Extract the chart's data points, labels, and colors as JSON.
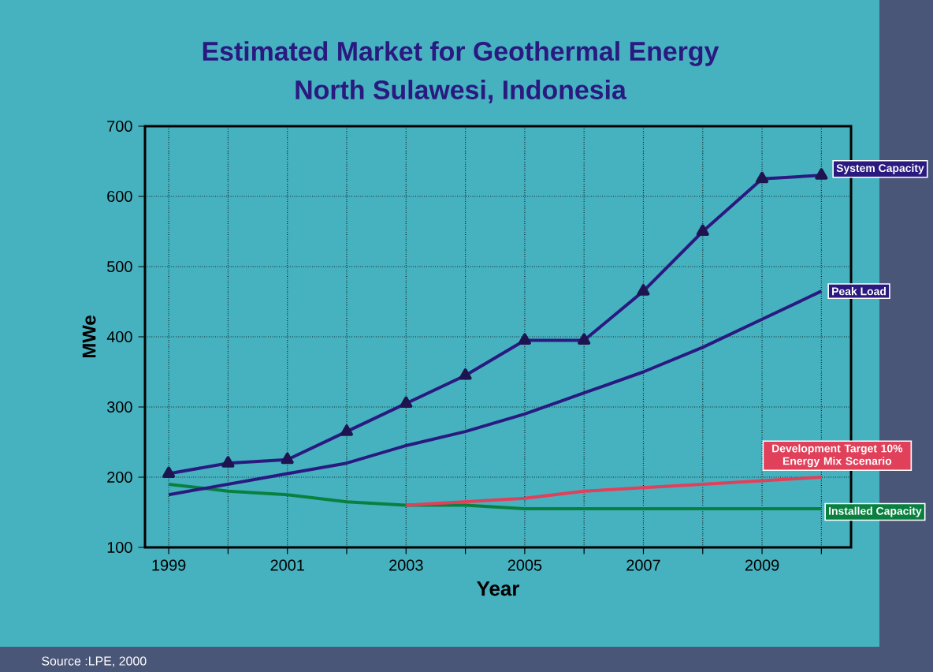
{
  "chart_data": {
    "type": "line",
    "title": "Estimated Market for Geothermal Energy",
    "subtitle": "North Sulawesi, Indonesia",
    "xlabel": "Year",
    "ylabel": "MWe",
    "annotations": [
      "Source :LPE, 2000"
    ],
    "xlim": [
      1998.6,
      2010.5
    ],
    "xticks": [
      1999,
      {
        "value": 2000,
        "label": null
      },
      2001,
      {
        "value": 2002,
        "label": null
      },
      2003,
      {
        "value": 2004,
        "label": null
      },
      2005,
      {
        "value": 2006,
        "label": null
      },
      2007,
      {
        "value": 2008,
        "label": null
      },
      2009,
      {
        "value": 2010,
        "label": null
      }
    ],
    "ylim": [
      100,
      700
    ],
    "yticks": [
      100,
      200,
      300,
      400,
      500,
      600,
      700
    ],
    "grid": true,
    "series": [
      {
        "name": "System Capacity",
        "color": "#2a1a80",
        "marker": "triangle",
        "x": [
          1999,
          2000,
          2001,
          2002,
          2003,
          2004,
          2005,
          2006,
          2007,
          2008,
          2009,
          2010
        ],
        "values": [
          205,
          220,
          225,
          265,
          305,
          345,
          395,
          395,
          465,
          550,
          625,
          630
        ]
      },
      {
        "name": "Peak Load",
        "color": "#2a1a80",
        "marker": "none",
        "x": [
          1999,
          2000,
          2001,
          2002,
          2003,
          2004,
          2005,
          2006,
          2007,
          2008,
          2009,
          2010
        ],
        "values": [
          175,
          190,
          205,
          220,
          245,
          265,
          290,
          320,
          350,
          385,
          425,
          465
        ]
      },
      {
        "name": "Development Target 10% Energy Mix Scenario",
        "color": "#e0405a",
        "marker": "none",
        "x": [
          2003,
          2004,
          2005,
          2006,
          2007,
          2008,
          2009,
          2010
        ],
        "values": [
          160,
          165,
          170,
          180,
          185,
          190,
          195,
          200
        ]
      },
      {
        "name": "Installed Capacity",
        "color": "#0a8040",
        "marker": "none",
        "x": [
          1999,
          2000,
          2001,
          2002,
          2003,
          2004,
          2005,
          2006,
          2007,
          2008,
          2009,
          2010
        ],
        "values": [
          190,
          180,
          175,
          165,
          160,
          160,
          155,
          155,
          155,
          155,
          155,
          155
        ]
      }
    ]
  }
}
